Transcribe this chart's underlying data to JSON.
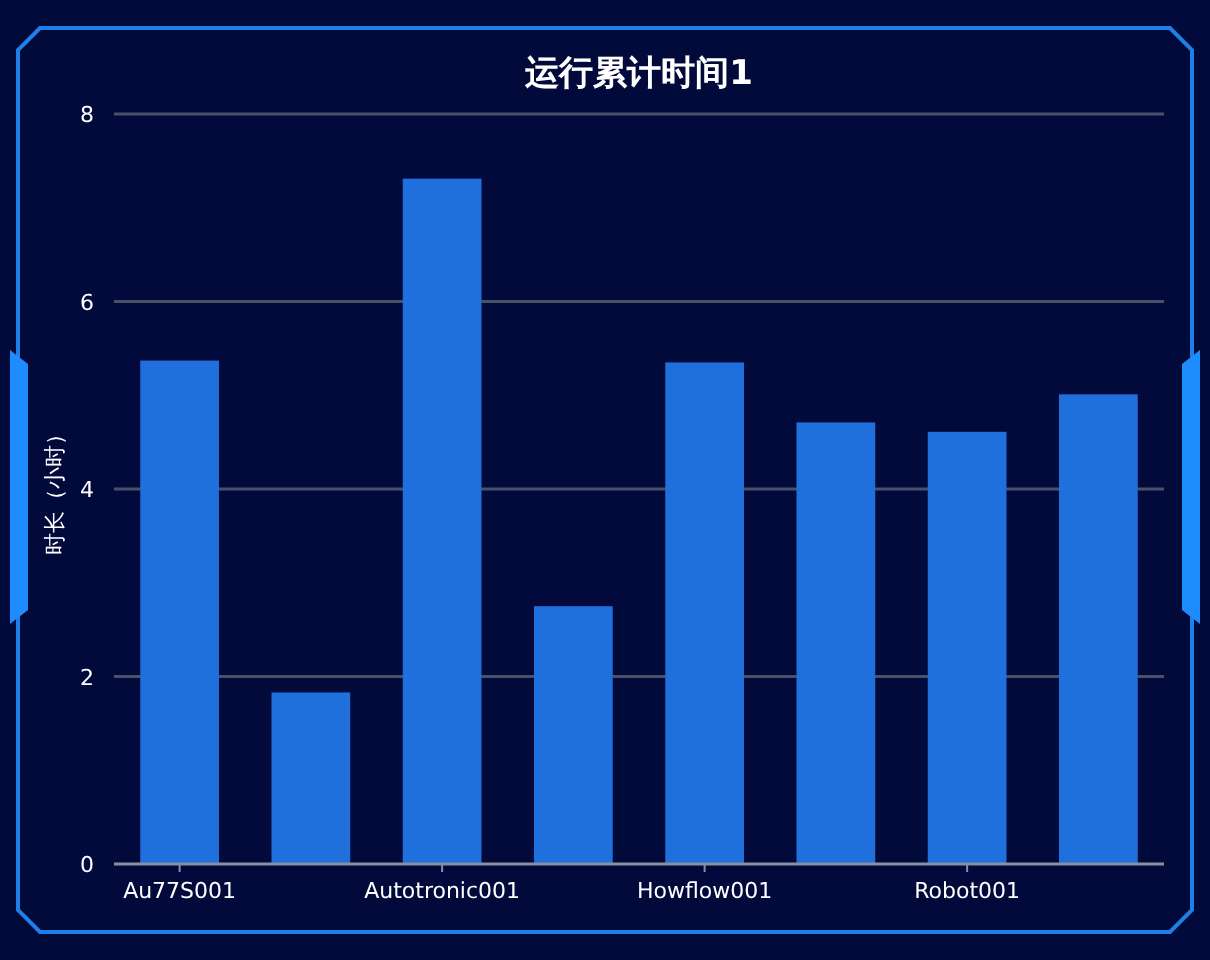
{
  "chart_data": {
    "type": "bar",
    "title": "运行累计时间1",
    "ylabel": "时长（小时）",
    "categories": [
      "Au77S001",
      null,
      "Autotronic001",
      null,
      "Howflow001",
      null,
      "Robot001",
      null
    ],
    "values": [
      5.37,
      1.83,
      7.31,
      2.75,
      5.35,
      4.71,
      4.61,
      5.01
    ],
    "color": "#1f6fdc",
    "ylim": [
      0,
      8
    ],
    "yticks": [
      0,
      2,
      4,
      6,
      8
    ],
    "grid": "y"
  }
}
